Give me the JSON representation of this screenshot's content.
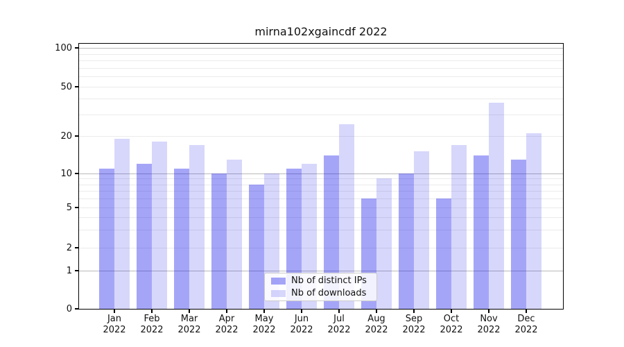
{
  "page": {
    "background": "#ffffff"
  },
  "chart_data": {
    "type": "bar",
    "title": "mirna102xgaincdf 2022",
    "categories": [
      "Jan",
      "Feb",
      "Mar",
      "Apr",
      "May",
      "Jun",
      "Jul",
      "Aug",
      "Sep",
      "Oct",
      "Nov",
      "Dec"
    ],
    "category_sublabel": "2022",
    "series": [
      {
        "name": "Nb of distinct IPs",
        "color": "rgba(10,10,235,0.37)",
        "values": [
          11,
          12,
          11,
          10,
          8,
          11,
          14,
          6,
          10,
          6,
          14,
          13
        ]
      },
      {
        "name": "Nb of downloads",
        "color": "rgba(10,10,235,0.165)",
        "values": [
          19,
          18,
          17,
          13,
          10,
          12,
          25,
          9,
          15,
          17,
          37,
          21
        ]
      }
    ],
    "yscale": "symlog",
    "yticks": [
      0,
      1,
      2,
      5,
      10,
      20,
      50,
      100
    ],
    "ytick_labels": [
      "0",
      "1",
      "2",
      "5",
      "10",
      "20",
      "50",
      "100"
    ],
    "ylim": [
      0,
      112
    ],
    "xlabel": "",
    "ylabel": "",
    "grid": true,
    "legend_position": "bottom-center"
  },
  "colors": {
    "grid_major": "#b9b9b9",
    "grid_minor": "#ebebeb",
    "axis": "#000000",
    "text": "#111111",
    "legend_border": "#cbcbcb"
  }
}
